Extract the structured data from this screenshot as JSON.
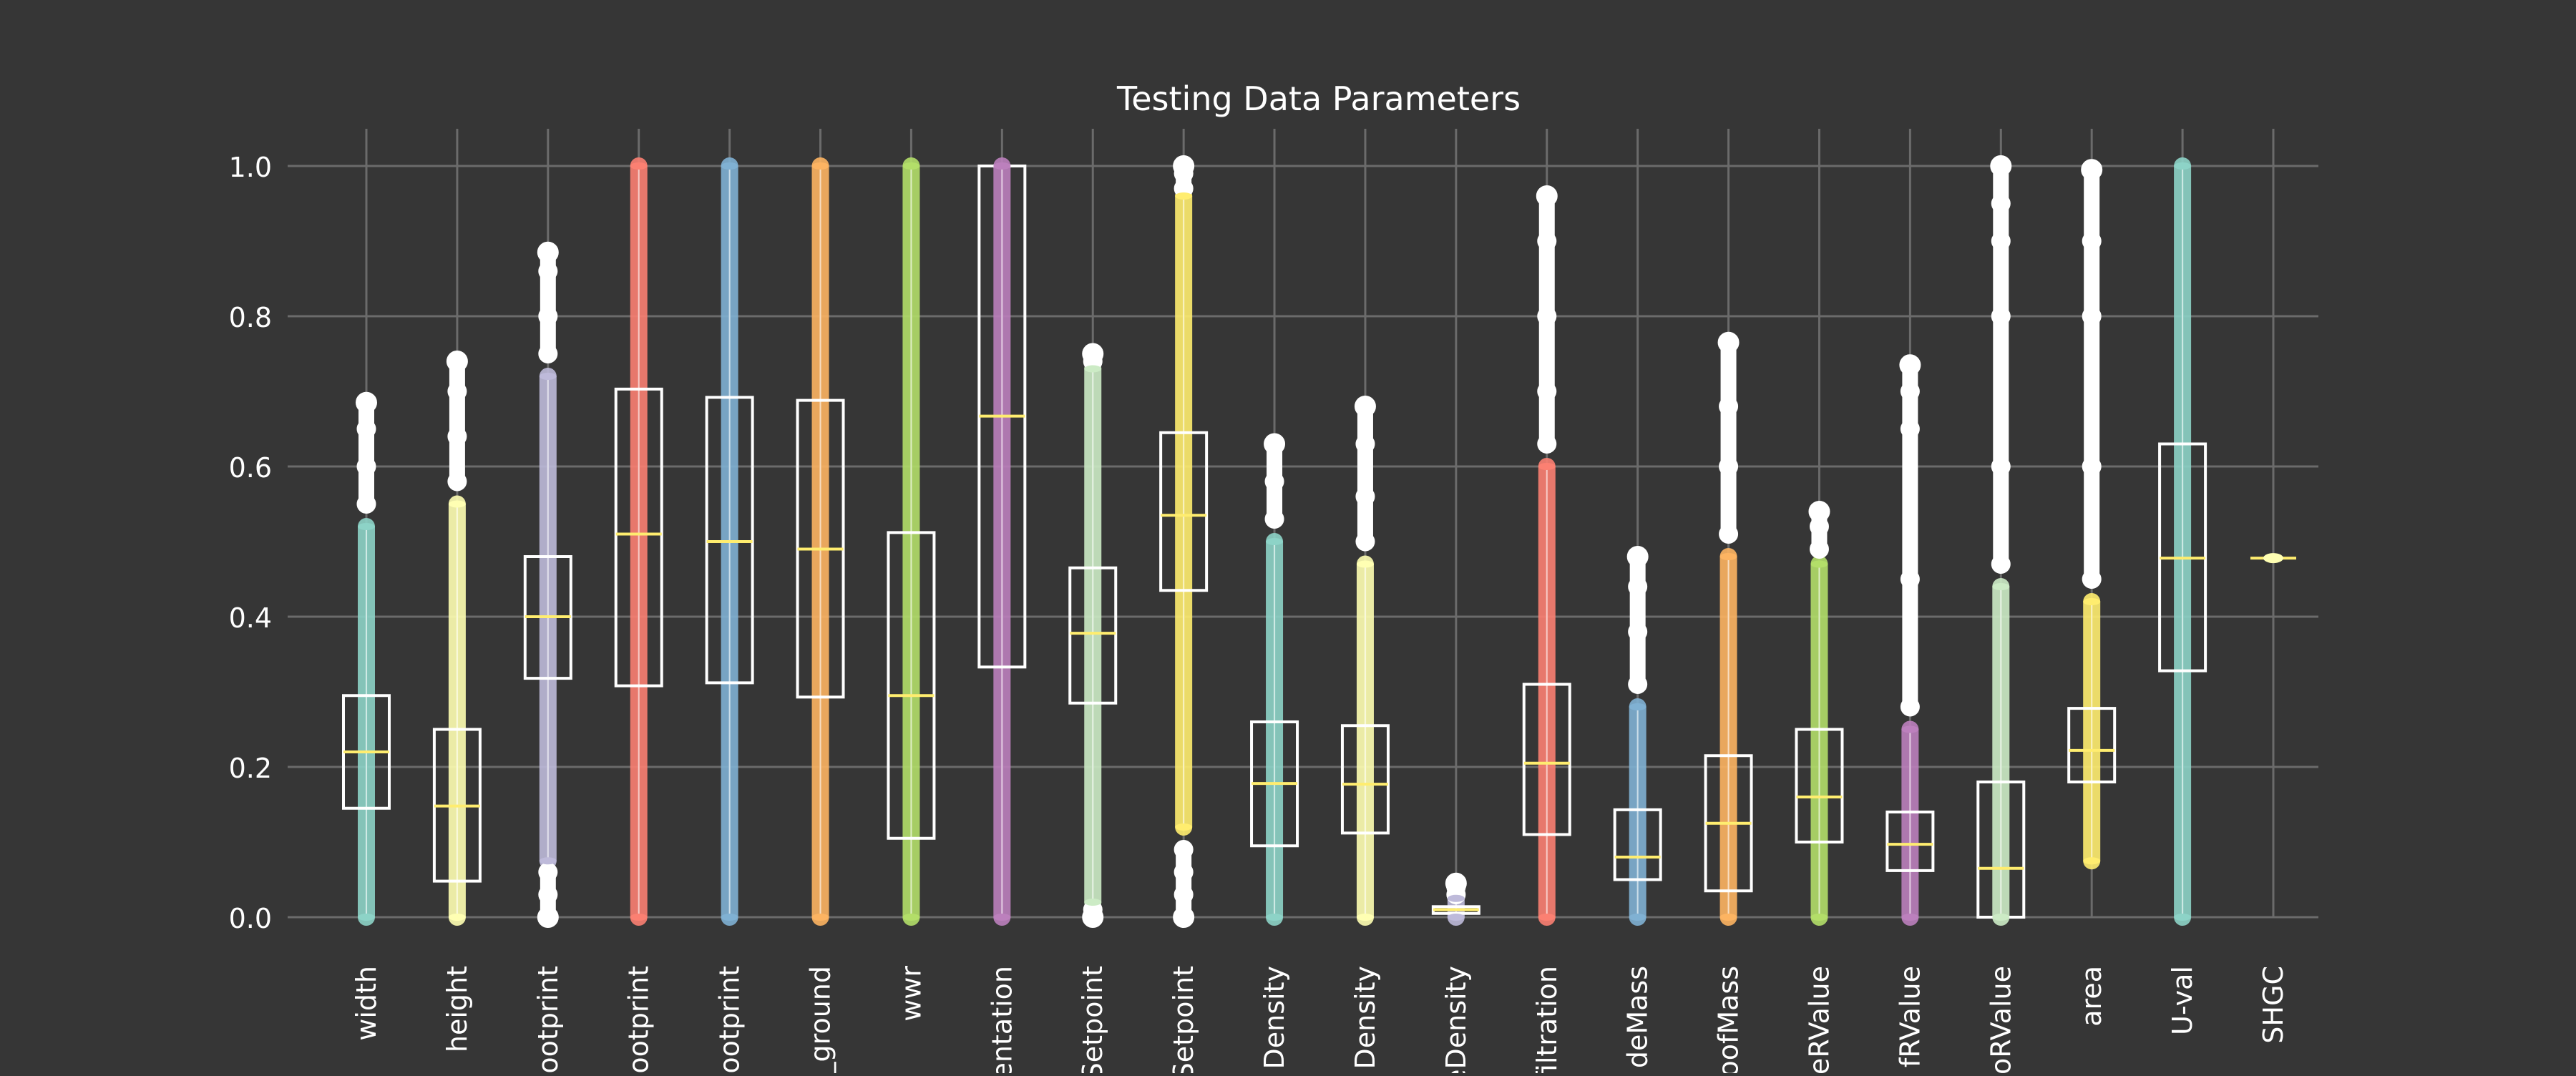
{
  "chart_data": {
    "type": "box",
    "title": "Testing Data Parameters",
    "xlabel": "",
    "ylabel": "",
    "ylim": [
      0,
      1.0
    ],
    "yticks": [
      0.0,
      0.2,
      0.4,
      0.6,
      0.8,
      1.0
    ],
    "ytick_labels": [
      "0.0",
      "0.2",
      "0.4",
      "0.6",
      "0.8",
      "1.0"
    ],
    "grid": true,
    "background": "#363636",
    "box_color": "#ffffff",
    "median_color": "#ffed6f",
    "categories": [
      {
        "label": "width",
        "color": "#8dd3c7",
        "whisker_low": 0.0,
        "q1": 0.145,
        "median": 0.22,
        "q3": 0.295,
        "whisker_high": 0.52,
        "outliers_low": [],
        "outliers_high": [
          0.55,
          0.6,
          0.65,
          0.685
        ]
      },
      {
        "label": "height",
        "color": "#ffffb3",
        "whisker_low": 0.0,
        "q1": 0.048,
        "median": 0.148,
        "q3": 0.25,
        "whisker_high": 0.55,
        "outliers_low": [],
        "outliers_high": [
          0.58,
          0.64,
          0.7,
          0.74
        ]
      },
      {
        "label": "footprint",
        "color": "#bebada",
        "whisker_low": 0.075,
        "q1": 0.318,
        "median": 0.4,
        "q3": 0.48,
        "whisker_high": 0.72,
        "outliers_low": [
          0.0,
          0.03,
          0.06
        ],
        "outliers_high": [
          0.75,
          0.8,
          0.86,
          0.885
        ]
      },
      {
        "label": "footprint",
        "color": "#fb8072",
        "whisker_low": 0.0,
        "q1": 0.308,
        "median": 0.51,
        "q3": 0.703,
        "whisker_high": 1.0,
        "outliers_low": [],
        "outliers_high": []
      },
      {
        "label": "footprint",
        "color": "#80b1d3",
        "whisker_low": 0.0,
        "q1": 0.312,
        "median": 0.5,
        "q3": 0.692,
        "whisker_high": 1.0,
        "outliers_low": [],
        "outliers_high": []
      },
      {
        "label": "_ground",
        "color": "#fdb462",
        "whisker_low": 0.0,
        "q1": 0.293,
        "median": 0.49,
        "q3": 0.688,
        "whisker_high": 1.0,
        "outliers_low": [],
        "outliers_high": []
      },
      {
        "label": "wwr",
        "color": "#b3de69",
        "whisker_low": 0.0,
        "q1": 0.105,
        "median": 0.295,
        "q3": 0.512,
        "whisker_high": 1.0,
        "outliers_low": [],
        "outliers_high": []
      },
      {
        "label": "entation",
        "color": "#bc80bd",
        "whisker_low": 0.0,
        "q1": 0.333,
        "median": 0.667,
        "q3": 1.0,
        "whisker_high": 1.0,
        "outliers_low": [],
        "outliers_high": []
      },
      {
        "label": "Setpoint",
        "color": "#ccebc5",
        "whisker_low": 0.02,
        "q1": 0.285,
        "median": 0.378,
        "q3": 0.465,
        "whisker_high": 0.73,
        "outliers_low": [
          0.0,
          0.01
        ],
        "outliers_high": [
          0.74,
          0.75
        ]
      },
      {
        "label": "Setpoint",
        "color": "#ffed6f",
        "whisker_low": 0.12,
        "q1": 0.435,
        "median": 0.535,
        "q3": 0.645,
        "whisker_high": 0.96,
        "outliers_low": [
          0.0,
          0.03,
          0.06,
          0.09
        ],
        "outliers_high": [
          0.97,
          0.99,
          1.0
        ]
      },
      {
        "label": "Density",
        "color": "#8dd3c7",
        "whisker_low": 0.0,
        "q1": 0.095,
        "median": 0.178,
        "q3": 0.26,
        "whisker_high": 0.5,
        "outliers_low": [],
        "outliers_high": [
          0.53,
          0.58,
          0.63
        ]
      },
      {
        "label": "Density",
        "color": "#ffffb3",
        "whisker_low": 0.0,
        "q1": 0.112,
        "median": 0.177,
        "q3": 0.255,
        "whisker_high": 0.47,
        "outliers_low": [],
        "outliers_high": [
          0.5,
          0.56,
          0.63,
          0.68
        ]
      },
      {
        "label": "eDensity",
        "color": "#bebada",
        "whisker_low": 0.0,
        "q1": 0.005,
        "median": 0.01,
        "q3": 0.014,
        "whisker_high": 0.025,
        "outliers_low": [],
        "outliers_high": [
          0.03,
          0.04,
          0.045
        ]
      },
      {
        "label": "filtration",
        "color": "#fb8072",
        "whisker_low": 0.0,
        "q1": 0.11,
        "median": 0.205,
        "q3": 0.31,
        "whisker_high": 0.6,
        "outliers_low": [],
        "outliers_high": [
          0.63,
          0.7,
          0.8,
          0.9,
          0.96
        ]
      },
      {
        "label": "deMass",
        "color": "#80b1d3",
        "whisker_low": 0.0,
        "q1": 0.05,
        "median": 0.08,
        "q3": 0.143,
        "whisker_high": 0.28,
        "outliers_low": [],
        "outliers_high": [
          0.31,
          0.38,
          0.44,
          0.48
        ]
      },
      {
        "label": "oofMass",
        "color": "#fdb462",
        "whisker_low": 0.0,
        "q1": 0.035,
        "median": 0.125,
        "q3": 0.215,
        "whisker_high": 0.48,
        "outliers_low": [],
        "outliers_high": [
          0.51,
          0.6,
          0.68,
          0.765
        ]
      },
      {
        "label": "eRValue",
        "color": "#b3de69",
        "whisker_low": 0.0,
        "q1": 0.1,
        "median": 0.16,
        "q3": 0.25,
        "whisker_high": 0.47,
        "outliers_low": [],
        "outliers_high": [
          0.49,
          0.52,
          0.54
        ]
      },
      {
        "label": "fRValue",
        "color": "#bc80bd",
        "whisker_low": 0.0,
        "q1": 0.062,
        "median": 0.097,
        "q3": 0.14,
        "whisker_high": 0.25,
        "outliers_low": [],
        "outliers_high": [
          0.28,
          0.45,
          0.65,
          0.7,
          0.735
        ]
      },
      {
        "label": "oRValue",
        "color": "#ccebc5",
        "whisker_low": 0.0,
        "q1": 0.0,
        "median": 0.065,
        "q3": 0.18,
        "whisker_high": 0.44,
        "outliers_low": [],
        "outliers_high": [
          0.47,
          0.6,
          0.8,
          0.9,
          0.95,
          1.0
        ]
      },
      {
        "label": "area",
        "color": "#ffed6f",
        "whisker_low": 0.075,
        "q1": 0.18,
        "median": 0.222,
        "q3": 0.278,
        "whisker_high": 0.42,
        "outliers_low": [],
        "outliers_high": [
          0.45,
          0.6,
          0.8,
          0.9,
          0.995
        ]
      },
      {
        "label": "U-val",
        "color": "#8dd3c7",
        "whisker_low": 0.0,
        "q1": 0.328,
        "median": 0.478,
        "q3": 0.63,
        "whisker_high": 1.0,
        "outliers_low": [],
        "outliers_high": []
      },
      {
        "label": "SHGC",
        "color": "#ffffb3",
        "whisker_low": 0.478,
        "q1": 0.478,
        "median": 0.478,
        "q3": 0.478,
        "whisker_high": 0.478,
        "outliers_low": [],
        "outliers_high": []
      }
    ]
  }
}
